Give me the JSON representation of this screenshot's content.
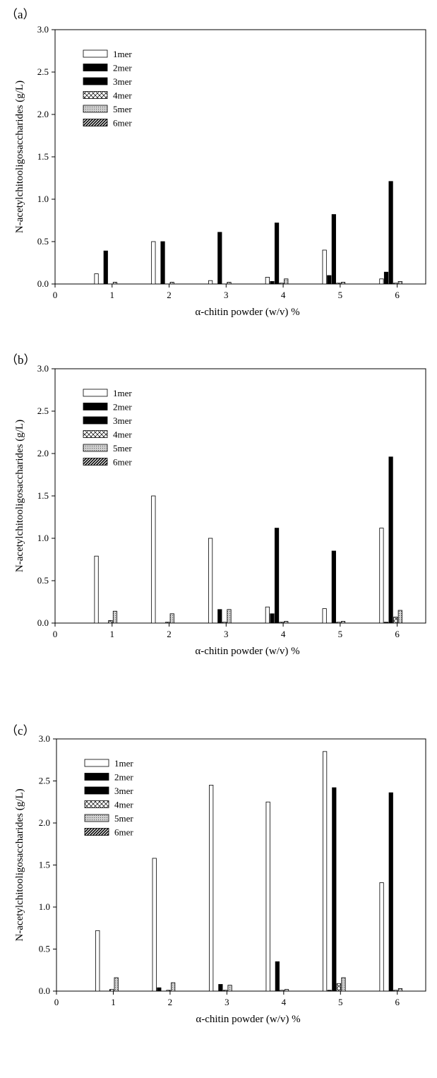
{
  "chart_data": [
    {
      "panel_label": "（a）",
      "type": "bar",
      "xlabel": "α-chitin powder (w/v) %",
      "ylabel": "N-acetylchitooligosaccharides (g/L)",
      "xlim": [
        0,
        6.5
      ],
      "ylim": [
        0,
        3.0
      ],
      "xticks": [
        "0",
        "1",
        "2",
        "3",
        "4",
        "5",
        "6"
      ],
      "yticks": [
        "0.0",
        "0.5",
        "1.0",
        "1.5",
        "2.0",
        "2.5",
        "3.0"
      ],
      "legend": "top-left",
      "categories": [
        1,
        2,
        3,
        4,
        5,
        6
      ],
      "series": [
        {
          "name": "1mer",
          "values": [
            0.12,
            0.5,
            0.04,
            0.08,
            0.4,
            0.06
          ]
        },
        {
          "name": "2mer",
          "values": [
            0.0,
            0.0,
            0.0,
            0.03,
            0.1,
            0.14
          ]
        },
        {
          "name": "3mer",
          "values": [
            0.39,
            0.5,
            0.61,
            0.72,
            0.82,
            1.21
          ]
        },
        {
          "name": "4mer",
          "values": [
            0.0,
            0.0,
            0.0,
            0.01,
            0.01,
            0.01
          ]
        },
        {
          "name": "5mer",
          "values": [
            0.02,
            0.02,
            0.02,
            0.06,
            0.02,
            0.03
          ]
        },
        {
          "name": "6mer",
          "values": [
            0.0,
            0.0,
            0.0,
            0.0,
            0.0,
            0.0
          ]
        }
      ]
    },
    {
      "panel_label": "（b）",
      "type": "bar",
      "xlabel": "α-chitin powder (w/v) %",
      "ylabel": "N-acetylchitooligosaccharides (g/L)",
      "xlim": [
        0,
        6.5
      ],
      "ylim": [
        0,
        3.0
      ],
      "xticks": [
        "0",
        "1",
        "2",
        "3",
        "4",
        "5",
        "6"
      ],
      "yticks": [
        "0.0",
        "0.5",
        "1.0",
        "1.5",
        "2.0",
        "2.5",
        "3.0"
      ],
      "legend": "top-left",
      "categories": [
        1,
        2,
        3,
        4,
        5,
        6
      ],
      "series": [
        {
          "name": "1mer",
          "values": [
            0.79,
            1.5,
            1.0,
            0.19,
            0.17,
            1.12
          ]
        },
        {
          "name": "2mer",
          "values": [
            0.0,
            0.0,
            0.0,
            0.11,
            0.0,
            0.01
          ]
        },
        {
          "name": "3mer",
          "values": [
            0.0,
            0.0,
            0.16,
            1.12,
            0.85,
            1.96
          ]
        },
        {
          "name": "4mer",
          "values": [
            0.03,
            0.01,
            0.01,
            0.01,
            0.01,
            0.07
          ]
        },
        {
          "name": "5mer",
          "values": [
            0.14,
            0.11,
            0.16,
            0.02,
            0.02,
            0.15
          ]
        },
        {
          "name": "6mer",
          "values": [
            0.0,
            0.0,
            0.0,
            0.0,
            0.0,
            0.0
          ]
        }
      ]
    },
    {
      "panel_label": "（c）",
      "type": "bar",
      "xlabel": "α-chitin powder (w/v) %",
      "ylabel": "N-acetylchitooligosaccharides (g/L)",
      "xlim": [
        0,
        6.5
      ],
      "ylim": [
        0,
        3.0
      ],
      "xticks": [
        "0",
        "1",
        "2",
        "3",
        "4",
        "5",
        "6"
      ],
      "yticks": [
        "0.0",
        "0.5",
        "1.0",
        "1.5",
        "2.0",
        "2.5",
        "3.0"
      ],
      "legend": "top-left",
      "categories": [
        1,
        2,
        3,
        4,
        5,
        6
      ],
      "series": [
        {
          "name": "1mer",
          "values": [
            0.72,
            1.58,
            2.45,
            2.25,
            2.85,
            1.29
          ]
        },
        {
          "name": "2mer",
          "values": [
            0.0,
            0.04,
            0.0,
            0.0,
            0.01,
            0.0
          ]
        },
        {
          "name": "3mer",
          "values": [
            0.0,
            0.0,
            0.08,
            0.35,
            2.42,
            2.36
          ]
        },
        {
          "name": "4mer",
          "values": [
            0.02,
            0.01,
            0.01,
            0.01,
            0.09,
            0.01
          ]
        },
        {
          "name": "5mer",
          "values": [
            0.16,
            0.1,
            0.07,
            0.02,
            0.16,
            0.03
          ]
        },
        {
          "name": "6mer",
          "values": [
            0.0,
            0.0,
            0.0,
            0.0,
            0.0,
            0.0
          ]
        }
      ]
    }
  ]
}
